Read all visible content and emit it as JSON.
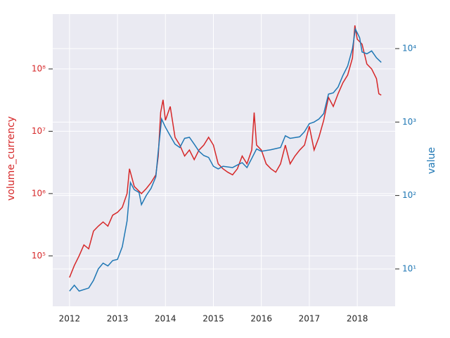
{
  "chart_data": {
    "type": "line",
    "log_scale": true,
    "grid": true,
    "background": "#eaeaf2",
    "xlim": [
      2011.65,
      2018.79
    ],
    "xticks": [
      2012,
      2013,
      2014,
      2015,
      2016,
      2017,
      2018
    ],
    "ylim": [
      15500,
      760000000
    ],
    "yticks": [
      {
        "value": 100000,
        "label": "10⁵"
      },
      {
        "value": 1000000,
        "label": "10⁶"
      },
      {
        "value": 10000000,
        "label": "10⁷"
      },
      {
        "value": 100000000,
        "label": "10⁸"
      }
    ],
    "y2lim": [
      3.1,
      29500
    ],
    "y2ticks": [
      {
        "value": 10,
        "label": "10¹"
      },
      {
        "value": 100,
        "label": "10²"
      },
      {
        "value": 1000,
        "label": "10³"
      },
      {
        "value": 10000,
        "label": "10⁴"
      }
    ],
    "series": [
      {
        "name": "volume_currency",
        "color": "#d62728",
        "axis": "y",
        "x": [
          2012.0,
          2012.1,
          2012.2,
          2012.3,
          2012.4,
          2012.5,
          2012.6,
          2012.7,
          2012.8,
          2012.9,
          2013.0,
          2013.1,
          2013.2,
          2013.25,
          2013.35,
          2013.5,
          2013.6,
          2013.7,
          2013.8,
          2013.85,
          2013.9,
          2013.95,
          2014.0,
          2014.1,
          2014.2,
          2014.3,
          2014.4,
          2014.5,
          2014.6,
          2014.7,
          2014.8,
          2014.9,
          2015.0,
          2015.1,
          2015.2,
          2015.3,
          2015.4,
          2015.5,
          2015.6,
          2015.7,
          2015.8,
          2015.85,
          2015.9,
          2016.0,
          2016.1,
          2016.2,
          2016.3,
          2016.4,
          2016.5,
          2016.6,
          2016.7,
          2016.8,
          2016.9,
          2017.0,
          2017.1,
          2017.2,
          2017.3,
          2017.4,
          2017.5,
          2017.6,
          2017.7,
          2017.8,
          2017.9,
          2017.95,
          2018.0,
          2018.1,
          2018.2,
          2018.3,
          2018.4,
          2018.45,
          2018.5
        ],
        "values": [
          45000,
          70000,
          100000,
          150000,
          130000,
          250000,
          300000,
          350000,
          300000,
          450000,
          500000,
          600000,
          1000000,
          2500000,
          1300000,
          1000000,
          1200000,
          1500000,
          2000000,
          4000000,
          20000000,
          32000000,
          15000000,
          25000000,
          8000000,
          6000000,
          4000000,
          5000000,
          3500000,
          5000000,
          6000000,
          8000000,
          6000000,
          3000000,
          2500000,
          2200000,
          2000000,
          2500000,
          4000000,
          3000000,
          5000000,
          20000000,
          6000000,
          5000000,
          3000000,
          2500000,
          2200000,
          3000000,
          6000000,
          3000000,
          4000000,
          5000000,
          6000000,
          12000000,
          5000000,
          8000000,
          15000000,
          35000000,
          25000000,
          40000000,
          60000000,
          80000000,
          150000000,
          500000000,
          300000000,
          250000000,
          120000000,
          100000000,
          70000000,
          40000000,
          38000000
        ]
      },
      {
        "name": "value",
        "color": "#1f77b4",
        "axis": "y2",
        "x": [
          2012.0,
          2012.1,
          2012.2,
          2012.4,
          2012.5,
          2012.6,
          2012.7,
          2012.8,
          2012.9,
          2013.0,
          2013.1,
          2013.2,
          2013.27,
          2013.35,
          2013.45,
          2013.5,
          2013.6,
          2013.7,
          2013.8,
          2013.85,
          2013.92,
          2014.0,
          2014.1,
          2014.2,
          2014.3,
          2014.4,
          2014.5,
          2014.6,
          2014.7,
          2014.8,
          2014.9,
          2015.0,
          2015.1,
          2015.2,
          2015.4,
          2015.5,
          2015.6,
          2015.7,
          2015.8,
          2015.9,
          2016.0,
          2016.2,
          2016.4,
          2016.5,
          2016.6,
          2016.8,
          2016.9,
          2017.0,
          2017.1,
          2017.2,
          2017.3,
          2017.4,
          2017.5,
          2017.6,
          2017.7,
          2017.8,
          2017.9,
          2017.96,
          2018.05,
          2018.1,
          2018.2,
          2018.3,
          2018.4,
          2018.5
        ],
        "values": [
          5,
          6,
          5,
          5.5,
          7,
          10,
          12,
          11,
          13,
          13.5,
          20,
          45,
          150,
          120,
          110,
          75,
          100,
          125,
          180,
          400,
          1100,
          850,
          650,
          500,
          450,
          600,
          620,
          500,
          400,
          350,
          330,
          250,
          230,
          250,
          240,
          260,
          280,
          240,
          320,
          430,
          400,
          420,
          450,
          650,
          600,
          630,
          740,
          950,
          1000,
          1100,
          1300,
          2400,
          2500,
          3000,
          4300,
          5800,
          10000,
          18500,
          14000,
          9000,
          8500,
          9300,
          7500,
          6500
        ]
      }
    ]
  }
}
